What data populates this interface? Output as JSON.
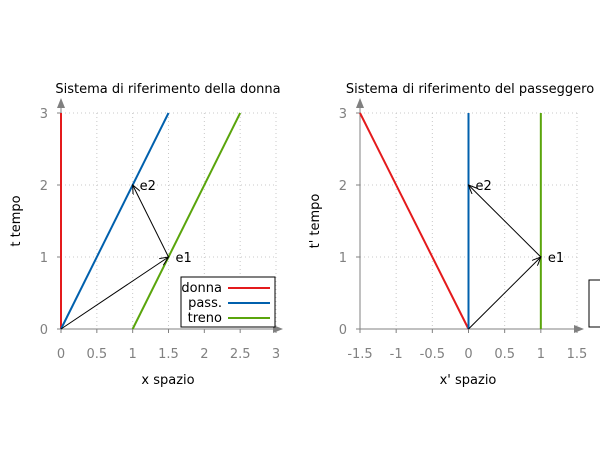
{
  "chart_data": [
    {
      "type": "line",
      "title": "Sistema di riferimento della donna",
      "xlabel": "x spazio",
      "ylabel": "t tempo",
      "xlim": [
        0,
        3
      ],
      "ylim": [
        0,
        3
      ],
      "x_ticks": [
        "0",
        "0.5",
        "1",
        "1.5",
        "2",
        "2.5",
        "3"
      ],
      "y_ticks": [
        "0",
        "1",
        "2",
        "3"
      ],
      "grid": true,
      "legend": "bottom-right",
      "series": [
        {
          "name": "donna",
          "color": "#e41a1c",
          "x": [
            0,
            0
          ],
          "y": [
            0,
            3
          ]
        },
        {
          "name": "pass.",
          "color": "#0060ad",
          "x": [
            0,
            1.5
          ],
          "y": [
            0,
            3
          ]
        },
        {
          "name": "treno",
          "color": "#5aa50c",
          "x": [
            1,
            2.5
          ],
          "y": [
            0,
            3
          ]
        }
      ],
      "annotations": [
        {
          "label": "e1",
          "x": 1.5,
          "y": 1
        },
        {
          "label": "e2",
          "x": 1,
          "y": 2
        }
      ],
      "arrows": [
        {
          "from": [
            0,
            0
          ],
          "to": [
            1.5,
            1
          ]
        },
        {
          "from": [
            1.5,
            1
          ],
          "to": [
            1,
            2
          ]
        }
      ]
    },
    {
      "type": "line",
      "title": "Sistema di riferimento del passeggero",
      "xlabel": "x' spazio",
      "ylabel": "t' tempo",
      "xlim": [
        -1.5,
        1.5
      ],
      "ylim": [
        0,
        3
      ],
      "x_ticks": [
        "-1.5",
        "-1",
        "-0.5",
        "0",
        "0.5",
        "1",
        "1.5"
      ],
      "y_ticks": [
        "0",
        "1",
        "2",
        "3"
      ],
      "grid": true,
      "series": [
        {
          "color": "#e41a1c",
          "x": [
            0,
            -1.5
          ],
          "y": [
            0,
            3
          ]
        },
        {
          "color": "#0060ad",
          "x": [
            0,
            0
          ],
          "y": [
            0,
            3
          ]
        },
        {
          "color": "#5aa50c",
          "x": [
            1,
            1
          ],
          "y": [
            0,
            3
          ]
        }
      ],
      "annotations": [
        {
          "label": "e1",
          "x": 1,
          "y": 1
        },
        {
          "label": "e2",
          "x": 0,
          "y": 2
        }
      ],
      "arrows": [
        {
          "from": [
            0,
            0
          ],
          "to": [
            1,
            1
          ]
        },
        {
          "from": [
            1,
            1
          ],
          "to": [
            0,
            2
          ]
        }
      ]
    }
  ]
}
